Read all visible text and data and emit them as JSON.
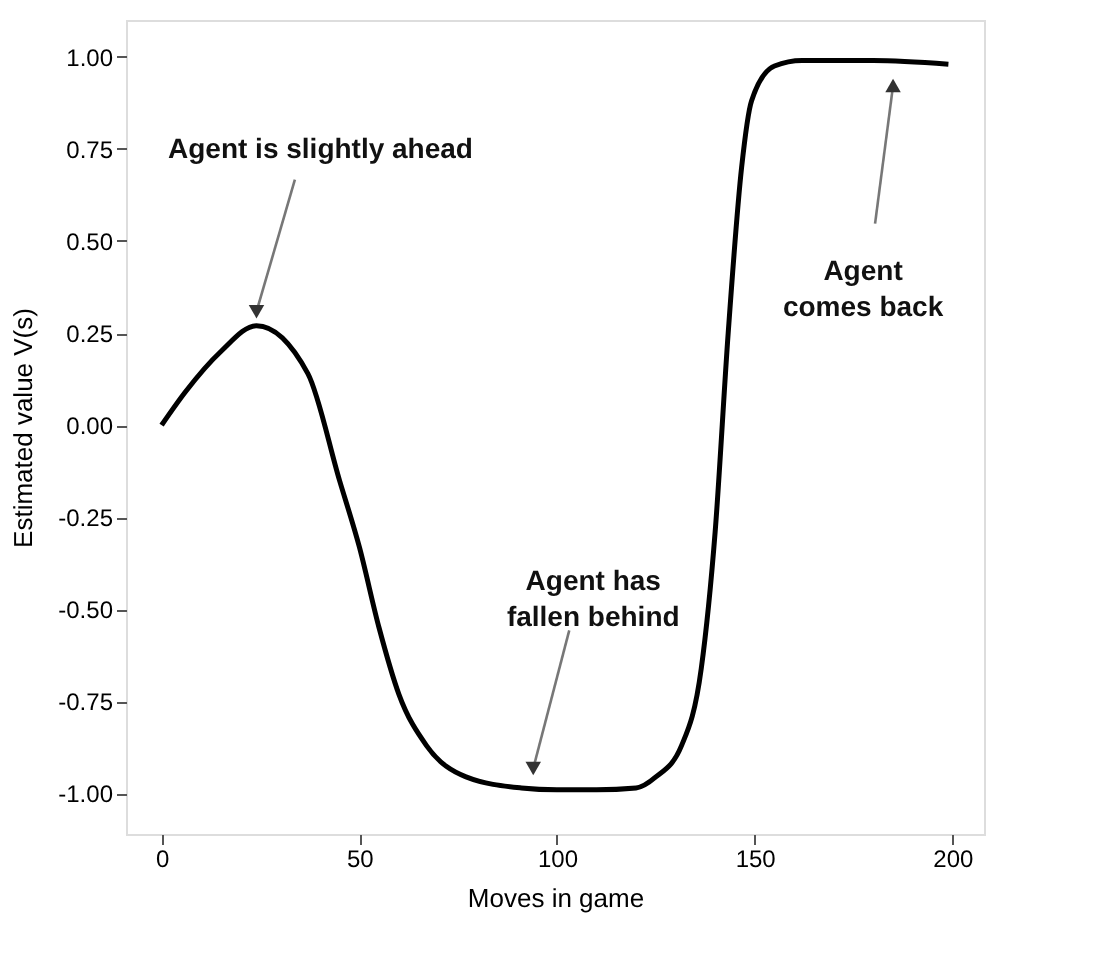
{
  "chart_data": {
    "type": "line",
    "xlabel": "Moves in game",
    "ylabel": "Estimated value V(s)",
    "x": [
      0,
      6,
      15,
      24,
      37,
      45,
      50,
      55,
      60,
      67,
      77,
      91,
      100,
      110,
      120,
      125,
      131.5,
      136.5,
      140,
      143.3,
      146.7,
      149.2,
      155,
      162,
      180,
      199
    ],
    "series": [
      {
        "color": "#000000",
        "values": [
          0,
          0.09,
          0.2,
          0.27,
          0.14,
          -0.15,
          -0.33,
          -0.55,
          -0.73,
          -0.87,
          -0.955,
          -0.985,
          -0.99,
          -0.99,
          -0.985,
          -0.955,
          -0.87,
          -0.66,
          -0.29,
          0.25,
          0.7,
          0.88,
          0.975,
          0.99,
          0.99,
          0.98
        ]
      }
    ],
    "xlim": [
      -9,
      208
    ],
    "ylim": [
      -1.11,
      1.1
    ],
    "xticks": [
      0,
      50,
      100,
      150,
      200
    ],
    "yticks": [
      {
        "value": -1,
        "label": "-1.00"
      },
      {
        "value": -0.75,
        "label": "-0.75"
      },
      {
        "value": -0.5,
        "label": "-0.50"
      },
      {
        "value": -0.25,
        "label": "-0.25"
      },
      {
        "value": 0,
        "label": "0.00"
      },
      {
        "value": 0.25,
        "label": "0.25"
      },
      {
        "value": 0.5,
        "label": "0.50"
      },
      {
        "value": 0.75,
        "label": "0.75"
      },
      {
        "value": 1,
        "label": "1.00"
      }
    ],
    "grid": false,
    "marker": "none",
    "line_style": "solid",
    "annotations": [
      {
        "text": "Agent is slightly ahead",
        "x": 24,
        "y": 0.27
      },
      {
        "text": "Agent has\nfallen behind",
        "x": 94,
        "y": -0.97
      },
      {
        "text": "Agent\ncomes back",
        "x": 185,
        "y": 0.96
      }
    ]
  }
}
